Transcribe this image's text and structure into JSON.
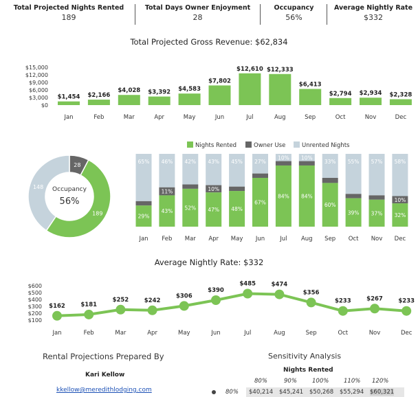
{
  "kpis": [
    {
      "label": "Total Projected Nights Rented",
      "value": "189"
    },
    {
      "label": "Total Days Owner Enjoyment",
      "value": "28"
    },
    {
      "label": "Occupancy",
      "value": "56%"
    },
    {
      "label": "Average Nightly Rate",
      "value": "$332"
    }
  ],
  "colors": {
    "green": "#7cc455",
    "dark": "#666666",
    "light": "#c5d3dc"
  },
  "months": [
    "Jan",
    "Feb",
    "Mar",
    "Apr",
    "May",
    "Jun",
    "Jul",
    "Aug",
    "Sep",
    "Oct",
    "Nov",
    "Dec"
  ],
  "revenue": {
    "title": "Total Projected Gross Revenue: $62,834",
    "y_ticks": [
      "$15,000",
      "$12,000",
      "$9,000",
      "$6,000",
      "$3,000",
      "$0"
    ],
    "y_tick_values": [
      15000,
      12000,
      9000,
      6000,
      3000,
      0
    ],
    "values": [
      1454,
      2166,
      4028,
      3392,
      4583,
      7802,
      12610,
      12333,
      6413,
      2794,
      2934,
      2328
    ],
    "labels": [
      "$1,454",
      "$2,166",
      "$4,028",
      "$3,392",
      "$4,583",
      "$7,802",
      "$12,610",
      "$12,333",
      "$6,413",
      "$2,794",
      "$2,934",
      "$2,328"
    ]
  },
  "legend": [
    "Nights Rented",
    "Owner Use",
    "Unrented Nights"
  ],
  "donut": {
    "center_label": "Occupancy",
    "center_value": "56%",
    "rented": 189,
    "owner": 28,
    "unrented": 148,
    "rented_label": "189",
    "owner_label": "28",
    "unrented_label": "148"
  },
  "stacked": {
    "rented": [
      29,
      43,
      52,
      47,
      48,
      67,
      84,
      84,
      60,
      39,
      37,
      32
    ],
    "owner": [
      6,
      11,
      6,
      10,
      6,
      6,
      6,
      6,
      7,
      6,
      6,
      10
    ],
    "unrented": [
      65,
      46,
      42,
      43,
      45,
      27,
      10,
      10,
      33,
      55,
      57,
      58
    ],
    "rented_labels": [
      "29%",
      "43%",
      "52%",
      "47%",
      "48%",
      "67%",
      "84%",
      "84%",
      "60%",
      "39%",
      "37%",
      "32%"
    ],
    "owner_labels": [
      "",
      "11%",
      "",
      "10%",
      "",
      "",
      "",
      "",
      "",
      "",
      "",
      "10%"
    ],
    "unrented_labels": [
      "65%",
      "46%",
      "42%",
      "43%",
      "45%",
      "27%",
      "10%",
      "10%",
      "33%",
      "55%",
      "57%",
      "58%"
    ]
  },
  "rate": {
    "title": "Average Nightly Rate: $332",
    "y_ticks": [
      "$600",
      "$500",
      "$400",
      "$300",
      "$200",
      "$100"
    ],
    "y_tick_values": [
      600,
      500,
      400,
      300,
      200,
      100
    ],
    "values": [
      162,
      181,
      252,
      242,
      306,
      390,
      485,
      474,
      356,
      233,
      267,
      233
    ],
    "labels": [
      "$162",
      "$181",
      "$252",
      "$242",
      "$306",
      "$390",
      "$485",
      "$474",
      "$356",
      "$233",
      "$267",
      "$233"
    ]
  },
  "footer": {
    "prepared_title": "Rental Projections Prepared By",
    "name": "Kari Kellow",
    "email": "kkellow@meredithlodging.com",
    "sens_title": "Sensitivity Analysis",
    "sens_sub": "Nights Rented",
    "sens_cols": [
      "80%",
      "90%",
      "100%",
      "110%",
      "120%"
    ],
    "sens_row_label": "80%",
    "sens_row": [
      "$40,214",
      "$45,241",
      "$50,268",
      "$55,294",
      "$60,321"
    ]
  },
  "chart_data": [
    {
      "type": "bar",
      "title": "Total Projected Gross Revenue: $62,834",
      "categories": [
        "Jan",
        "Feb",
        "Mar",
        "Apr",
        "May",
        "Jun",
        "Jul",
        "Aug",
        "Sep",
        "Oct",
        "Nov",
        "Dec"
      ],
      "values": [
        1454,
        2166,
        4028,
        3392,
        4583,
        7802,
        12610,
        12333,
        6413,
        2794,
        2934,
        2328
      ],
      "ylim": [
        0,
        15000
      ]
    },
    {
      "type": "pie",
      "center_label": "Occupancy",
      "center_value": "56%",
      "slices": [
        {
          "name": "Nights Rented",
          "value": 189
        },
        {
          "name": "Owner Use",
          "value": 28
        },
        {
          "name": "Unrented Nights",
          "value": 148
        }
      ]
    },
    {
      "type": "bar",
      "stacked": true,
      "percent": true,
      "categories": [
        "Jan",
        "Feb",
        "Mar",
        "Apr",
        "May",
        "Jun",
        "Jul",
        "Aug",
        "Sep",
        "Oct",
        "Nov",
        "Dec"
      ],
      "series": [
        {
          "name": "Nights Rented",
          "values": [
            29,
            43,
            52,
            47,
            48,
            67,
            84,
            84,
            60,
            39,
            37,
            32
          ]
        },
        {
          "name": "Owner Use",
          "values": [
            6,
            11,
            6,
            10,
            6,
            6,
            6,
            6,
            7,
            6,
            6,
            10
          ]
        },
        {
          "name": "Unrented Nights",
          "values": [
            65,
            46,
            42,
            43,
            45,
            27,
            10,
            10,
            33,
            55,
            57,
            58
          ]
        }
      ],
      "legend": "top"
    },
    {
      "type": "line",
      "title": "Average Nightly Rate: $332",
      "categories": [
        "Jan",
        "Feb",
        "Mar",
        "Apr",
        "May",
        "Jun",
        "Jul",
        "Aug",
        "Sep",
        "Oct",
        "Nov",
        "Dec"
      ],
      "values": [
        162,
        181,
        252,
        242,
        306,
        390,
        485,
        474,
        356,
        233,
        267,
        233
      ],
      "ylim": [
        100,
        600
      ]
    }
  ]
}
